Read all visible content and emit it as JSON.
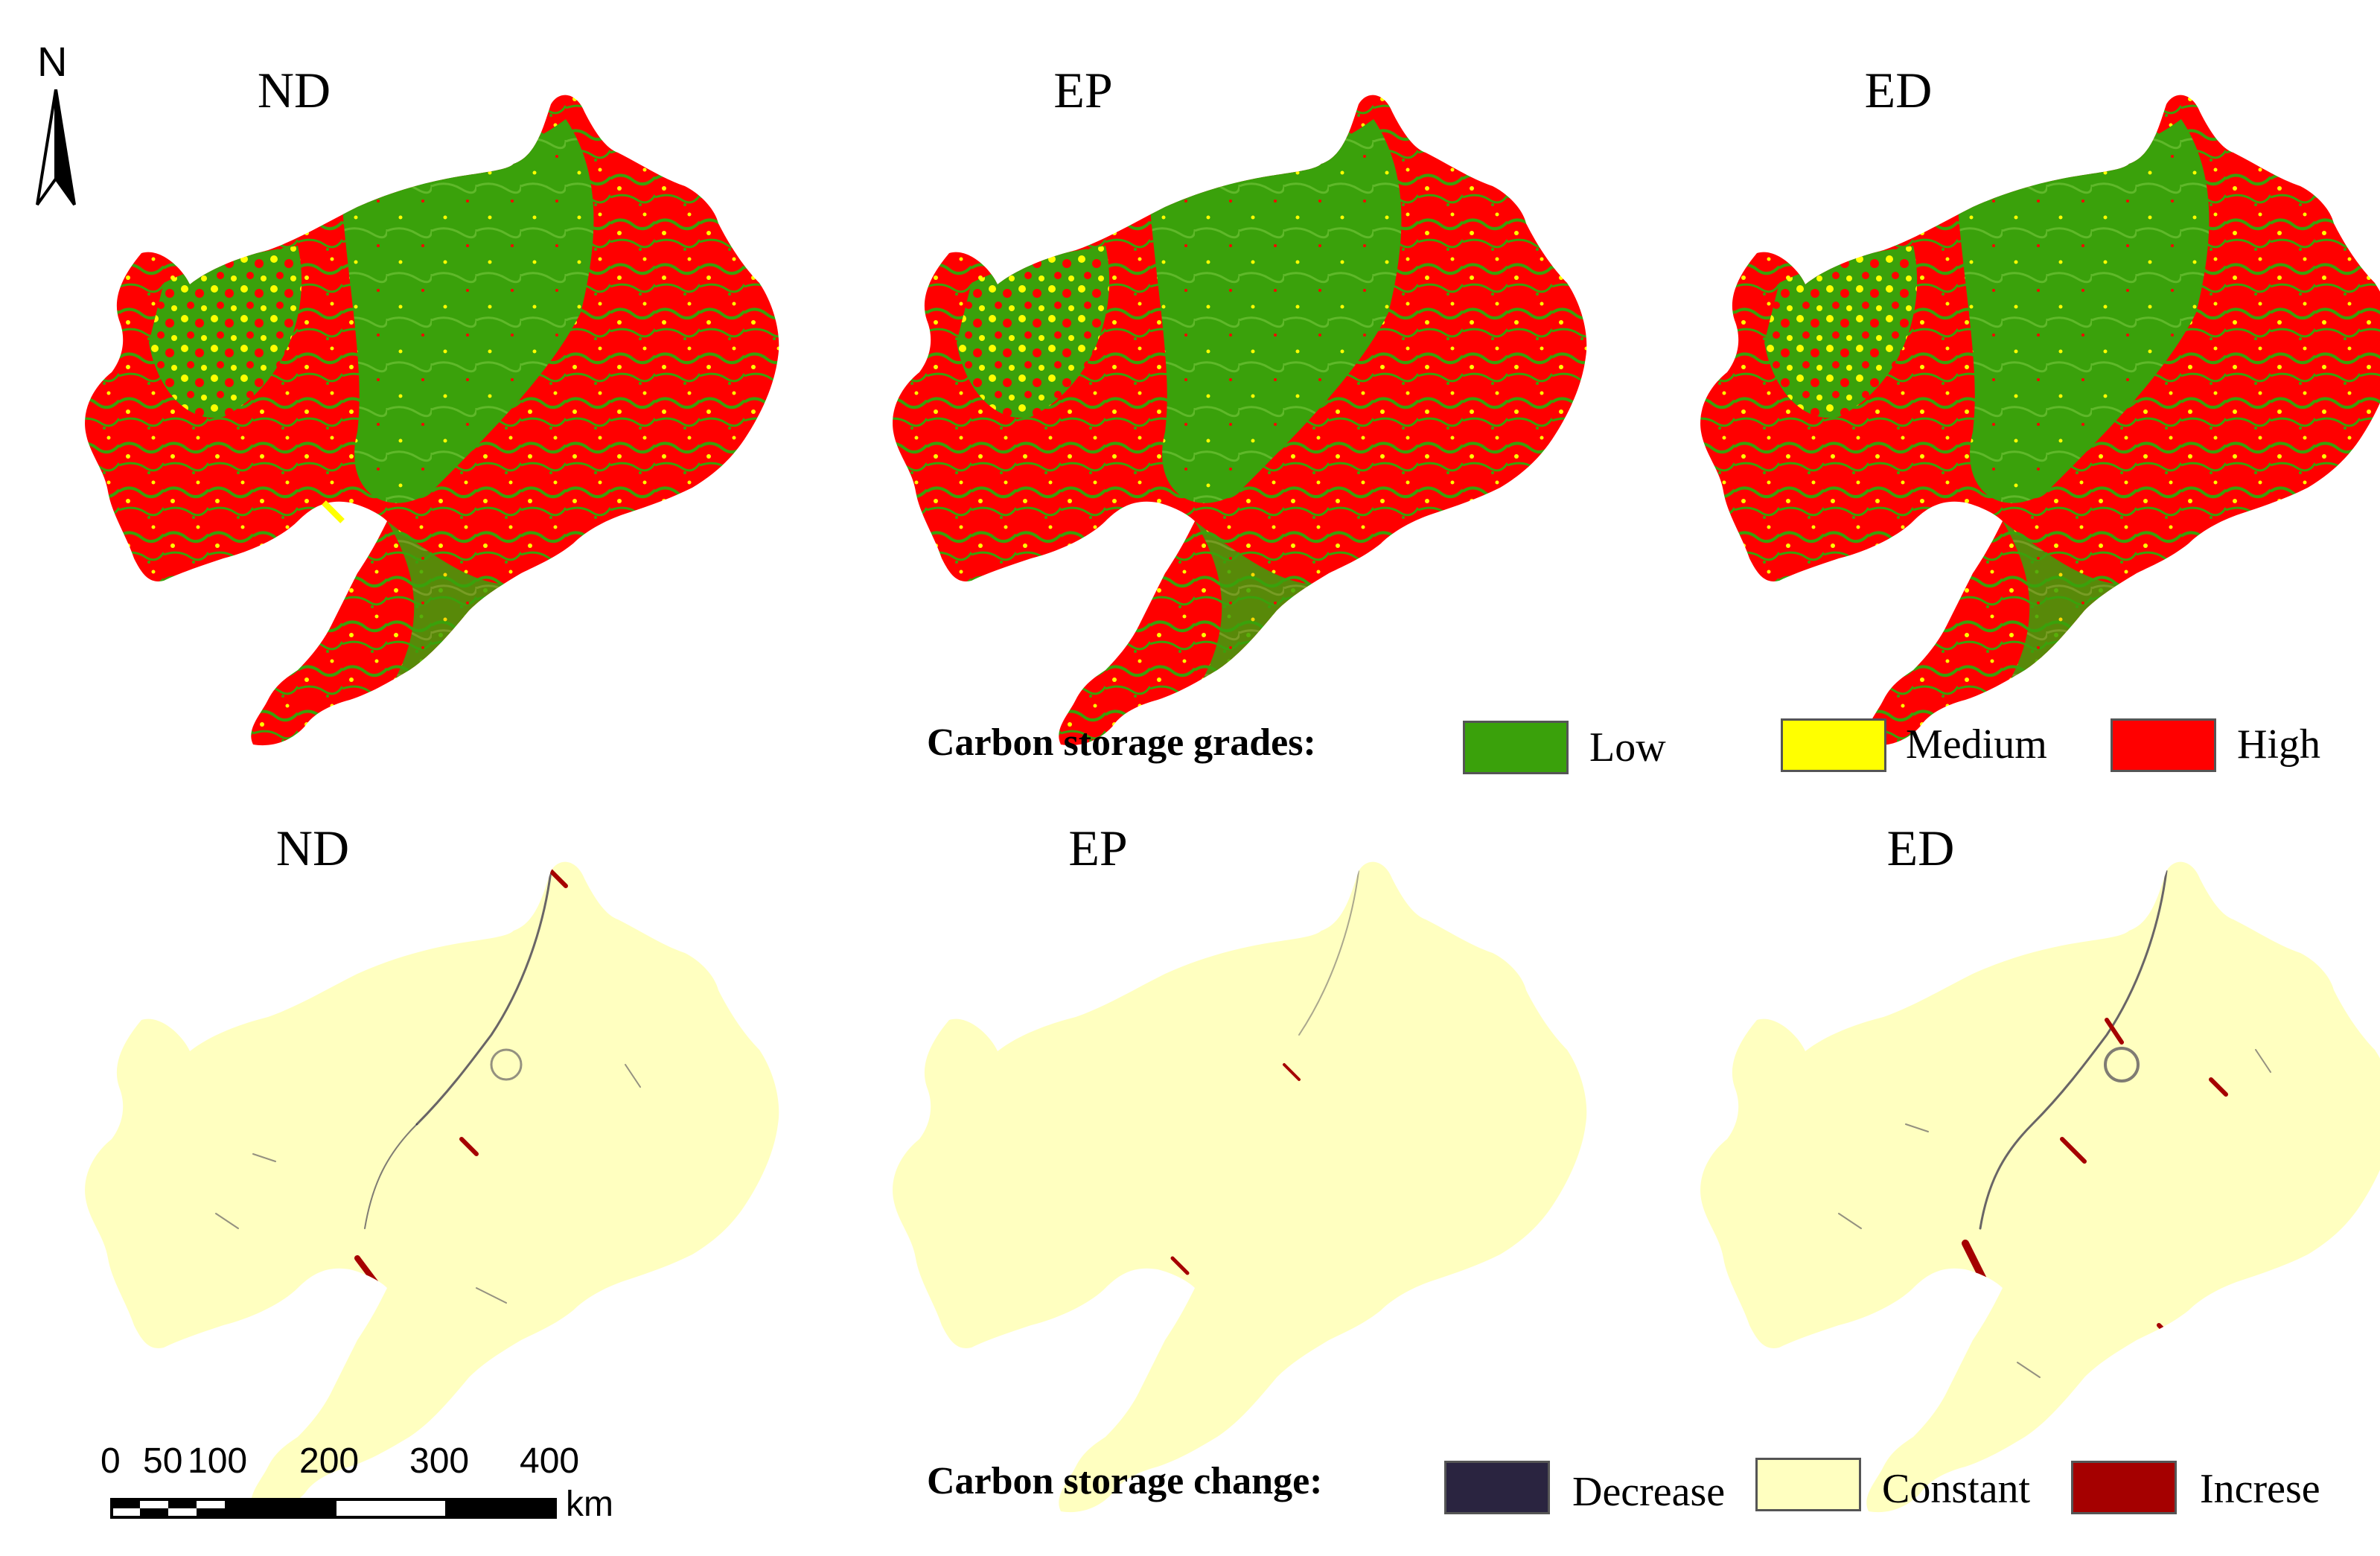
{
  "north_arrow": {
    "label": "N"
  },
  "row_grades": {
    "panels": [
      {
        "title": "ND"
      },
      {
        "title": "EP"
      },
      {
        "title": "ED"
      }
    ],
    "legend": {
      "title": "Carbon storage grades:",
      "items": [
        {
          "label": "Low",
          "color": "#3aa10b"
        },
        {
          "label": "Medium",
          "color": "#ffff00"
        },
        {
          "label": "High",
          "color": "#ff0000"
        }
      ]
    }
  },
  "row_change": {
    "panels": [
      {
        "title": "ND"
      },
      {
        "title": "EP"
      },
      {
        "title": "ED"
      }
    ],
    "legend": {
      "title": "Carbon storage change:",
      "items": [
        {
          "label": "Decrease",
          "color": "#2a2440"
        },
        {
          "label": "Constant",
          "color": "#ffffc0"
        },
        {
          "label": "Increse",
          "color": "#a50000"
        }
      ]
    }
  },
  "scale_bar": {
    "ticks": [
      "0",
      "50",
      "100",
      "200",
      "300",
      "400"
    ],
    "unit": "km"
  }
}
